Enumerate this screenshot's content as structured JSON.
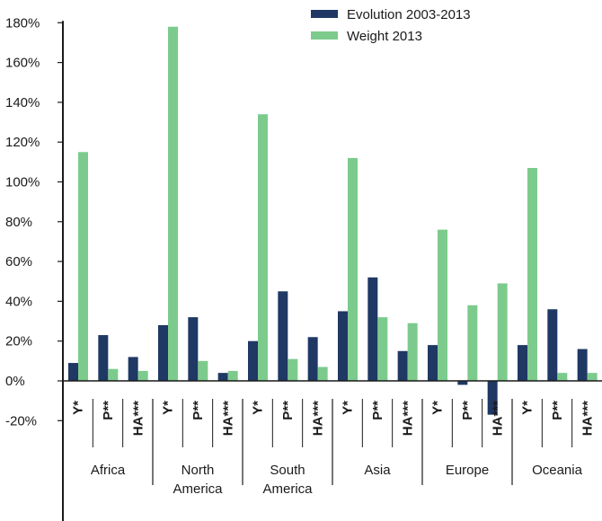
{
  "chart_data": {
    "type": "bar",
    "title": "",
    "xlabel": "",
    "ylabel": "",
    "ylim": [
      -20,
      180
    ],
    "yticks": [
      -20,
      0,
      20,
      40,
      60,
      80,
      100,
      120,
      140,
      160,
      180
    ],
    "ytick_labels": [
      "-20%",
      "0%",
      "20%",
      "40%",
      "60%",
      "80%",
      "100%",
      "120%",
      "140%",
      "160%",
      "180%"
    ],
    "legend_position": "top-right",
    "groups": [
      {
        "label_lines": [
          "Africa"
        ]
      },
      {
        "label_lines": [
          "North",
          "America"
        ]
      },
      {
        "label_lines": [
          "South",
          "America"
        ]
      },
      {
        "label_lines": [
          "Asia"
        ]
      },
      {
        "label_lines": [
          "Europe"
        ]
      },
      {
        "label_lines": [
          "Oceania"
        ]
      }
    ],
    "subcategories": [
      "Y*",
      "P**",
      "HA***"
    ],
    "categories": [
      "Africa Y*",
      "Africa P**",
      "Africa HA***",
      "North America Y*",
      "North America P**",
      "North America HA***",
      "South America Y*",
      "South America P**",
      "South America HA***",
      "Asia Y*",
      "Asia P**",
      "Asia HA***",
      "Europe Y*",
      "Europe P**",
      "Europe HA***",
      "Oceania Y*",
      "Oceania P**",
      "Oceania HA***"
    ],
    "series": [
      {
        "name": "Evolution 2003-2013",
        "color": "#1f3864",
        "values": [
          9,
          23,
          12,
          28,
          32,
          4,
          20,
          45,
          22,
          35,
          52,
          15,
          18,
          -2,
          -17,
          18,
          36,
          16
        ]
      },
      {
        "name": "Weight 2013",
        "color": "#7ccb8c",
        "values": [
          115,
          6,
          5,
          178,
          10,
          5,
          134,
          11,
          7,
          112,
          32,
          29,
          76,
          38,
          49,
          107,
          4,
          4
        ]
      }
    ]
  }
}
